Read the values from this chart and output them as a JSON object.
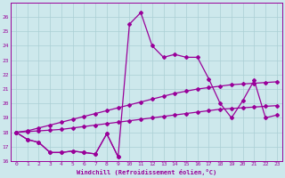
{
  "xlabel": "Windchill (Refroidissement éolien,°C)",
  "background_color": "#cde8ec",
  "grid_color": "#aacfd4",
  "line_color": "#990099",
  "ylim": [
    16,
    27
  ],
  "xlim": [
    -0.5,
    23.5
  ],
  "yticks": [
    16,
    17,
    18,
    19,
    20,
    21,
    22,
    23,
    24,
    25,
    26
  ],
  "xticks": [
    0,
    1,
    2,
    3,
    4,
    5,
    6,
    7,
    8,
    9,
    10,
    11,
    12,
    13,
    14,
    15,
    16,
    17,
    18,
    19,
    20,
    21,
    22,
    23
  ],
  "curve_jagged_x": [
    0,
    1,
    2,
    3,
    4,
    5,
    6,
    7,
    8,
    9,
    10,
    11,
    12,
    13,
    14,
    15,
    16,
    17,
    18,
    19,
    20,
    21,
    22,
    23
  ],
  "curve_jagged_y": [
    18.0,
    17.5,
    17.3,
    16.6,
    16.6,
    16.7,
    16.6,
    16.5,
    17.9,
    16.3,
    25.5,
    26.3,
    24.0,
    23.2,
    23.4,
    23.2,
    23.2,
    21.7,
    20.0,
    19.0,
    20.2,
    21.6,
    19.0,
    19.2
  ],
  "curve_upper_smooth_x": [
    0,
    1,
    2,
    3,
    4,
    5,
    6,
    7,
    8,
    9,
    10,
    11,
    12,
    13,
    14,
    15,
    16,
    17,
    18,
    19,
    20,
    21,
    22,
    23
  ],
  "curve_upper_smooth_y": [
    18.0,
    18.1,
    18.3,
    18.5,
    18.7,
    18.9,
    19.1,
    19.3,
    19.5,
    19.7,
    19.9,
    20.1,
    20.3,
    20.5,
    20.7,
    20.85,
    21.0,
    21.1,
    21.2,
    21.3,
    21.35,
    21.4,
    21.45,
    21.5
  ],
  "curve_lower_smooth_x": [
    0,
    1,
    2,
    3,
    4,
    5,
    6,
    7,
    8,
    9,
    10,
    11,
    12,
    13,
    14,
    15,
    16,
    17,
    18,
    19,
    20,
    21,
    22,
    23
  ],
  "curve_lower_smooth_y": [
    18.0,
    18.05,
    18.1,
    18.15,
    18.2,
    18.3,
    18.4,
    18.5,
    18.6,
    18.7,
    18.8,
    18.9,
    19.0,
    19.1,
    19.2,
    19.3,
    19.4,
    19.5,
    19.6,
    19.65,
    19.7,
    19.75,
    19.8,
    19.85
  ],
  "curve_bottom_x": [
    0,
    1,
    2,
    3,
    4,
    5,
    6,
    7,
    8,
    9
  ],
  "curve_bottom_y": [
    18.0,
    17.5,
    17.3,
    16.6,
    16.6,
    16.7,
    16.6,
    16.5,
    17.9,
    16.3
  ]
}
